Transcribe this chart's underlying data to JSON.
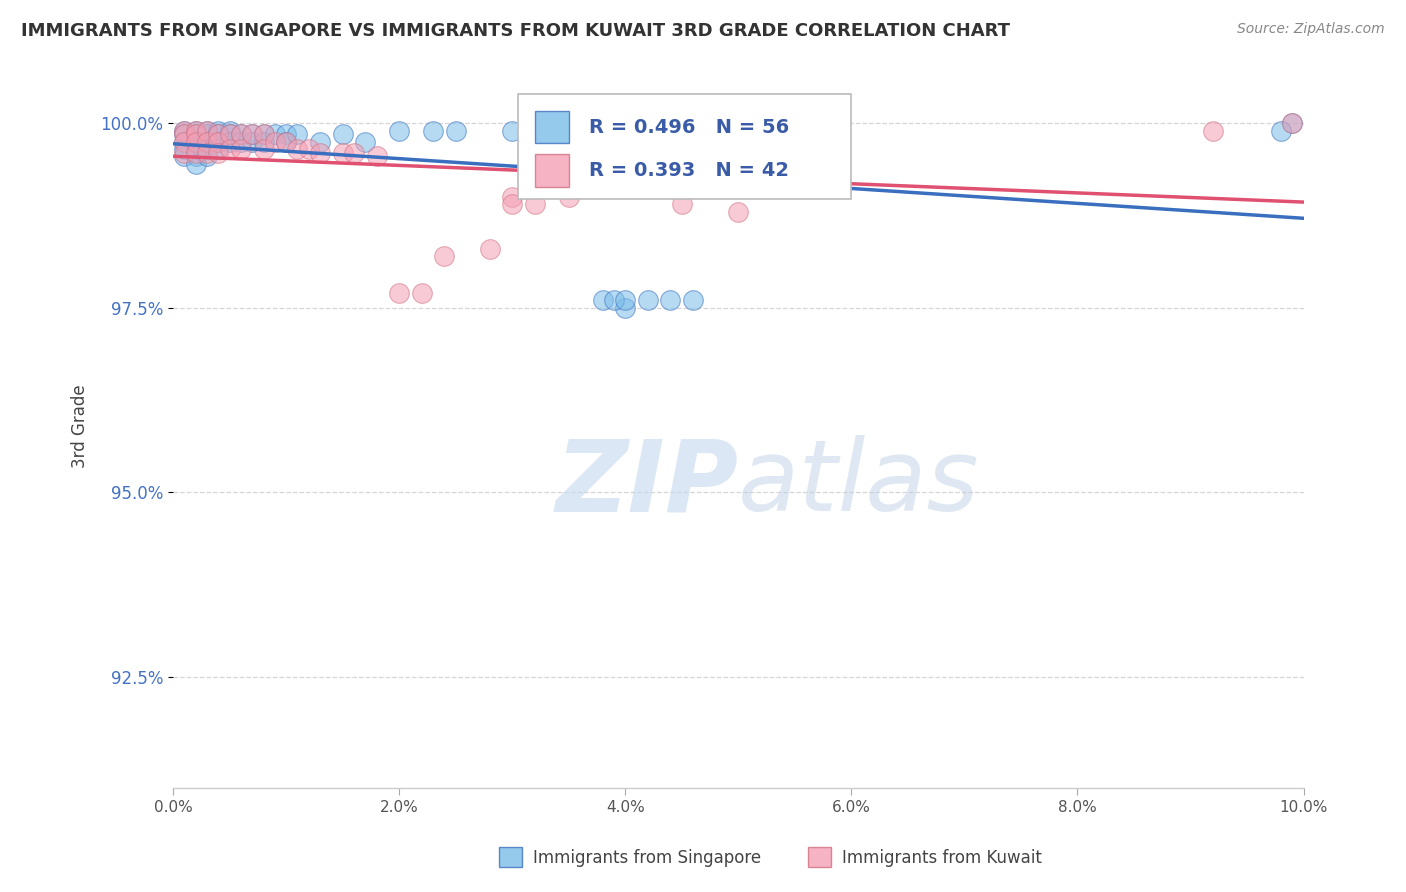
{
  "title": "IMMIGRANTS FROM SINGAPORE VS IMMIGRANTS FROM KUWAIT 3RD GRADE CORRELATION CHART",
  "source": "Source: ZipAtlas.com",
  "ylabel": "3rd Grade",
  "ytick_labels": [
    "92.5%",
    "95.0%",
    "97.5%",
    "100.0%"
  ],
  "ytick_values": [
    0.925,
    0.95,
    0.975,
    1.0
  ],
  "xmin": 0.0,
  "xmax": 0.1,
  "ymin": 0.91,
  "ymax": 1.008,
  "legend_R1": "R = 0.496",
  "legend_N1": "N = 56",
  "legend_R2": "R = 0.393",
  "legend_N2": "N = 42",
  "color_singapore": "#7bbde8",
  "color_kuwait": "#f4a0b5",
  "trendline_color_singapore": "#3a6fbf",
  "trendline_color_kuwait": "#e05070",
  "singapore_x": [
    0.001,
    0.001,
    0.001,
    0.001,
    0.001,
    0.002,
    0.002,
    0.002,
    0.002,
    0.002,
    0.002,
    0.003,
    0.003,
    0.003,
    0.003,
    0.003,
    0.004,
    0.004,
    0.004,
    0.004,
    0.005,
    0.005,
    0.005,
    0.006,
    0.006,
    0.007,
    0.007,
    0.008,
    0.008,
    0.009,
    0.01,
    0.01,
    0.011,
    0.013,
    0.015,
    0.017,
    0.02,
    0.023,
    0.025,
    0.03,
    0.038,
    0.039,
    0.04,
    0.042,
    0.044,
    0.046,
    0.05,
    0.04,
    0.042,
    0.044,
    0.046,
    0.038,
    0.039,
    0.04,
    0.099,
    0.098
  ],
  "singapore_y": [
    0.999,
    0.9985,
    0.9975,
    0.9965,
    0.9955,
    0.999,
    0.9985,
    0.9975,
    0.9965,
    0.9955,
    0.9945,
    0.999,
    0.9985,
    0.9975,
    0.9965,
    0.9955,
    0.999,
    0.9985,
    0.9975,
    0.9965,
    0.999,
    0.9985,
    0.9975,
    0.9985,
    0.9975,
    0.9985,
    0.9975,
    0.9985,
    0.9975,
    0.9985,
    0.9985,
    0.9975,
    0.9985,
    0.9975,
    0.9985,
    0.9975,
    0.999,
    0.999,
    0.999,
    0.999,
    0.999,
    0.999,
    0.999,
    0.999,
    0.999,
    0.999,
    0.999,
    0.975,
    0.976,
    0.976,
    0.976,
    0.976,
    0.976,
    0.976,
    1.0,
    0.999
  ],
  "kuwait_x": [
    0.001,
    0.001,
    0.001,
    0.001,
    0.002,
    0.002,
    0.002,
    0.002,
    0.003,
    0.003,
    0.003,
    0.004,
    0.004,
    0.004,
    0.005,
    0.005,
    0.006,
    0.006,
    0.007,
    0.008,
    0.008,
    0.009,
    0.01,
    0.011,
    0.012,
    0.013,
    0.015,
    0.016,
    0.018,
    0.02,
    0.022,
    0.024,
    0.03,
    0.035,
    0.04,
    0.045,
    0.05,
    0.03,
    0.032,
    0.028,
    0.092,
    0.099
  ],
  "kuwait_y": [
    0.999,
    0.9985,
    0.9975,
    0.996,
    0.999,
    0.9985,
    0.9975,
    0.996,
    0.999,
    0.9975,
    0.996,
    0.9985,
    0.9975,
    0.996,
    0.9985,
    0.9965,
    0.9985,
    0.9965,
    0.9985,
    0.9985,
    0.9965,
    0.9975,
    0.9975,
    0.9965,
    0.9965,
    0.996,
    0.996,
    0.996,
    0.9955,
    0.977,
    0.977,
    0.982,
    0.99,
    0.99,
    0.992,
    0.989,
    0.988,
    0.989,
    0.989,
    0.983,
    0.999,
    1.0
  ],
  "watermark_zip": "ZIP",
  "watermark_atlas": "atlas",
  "background_color": "#ffffff",
  "grid_color": "#cccccc"
}
